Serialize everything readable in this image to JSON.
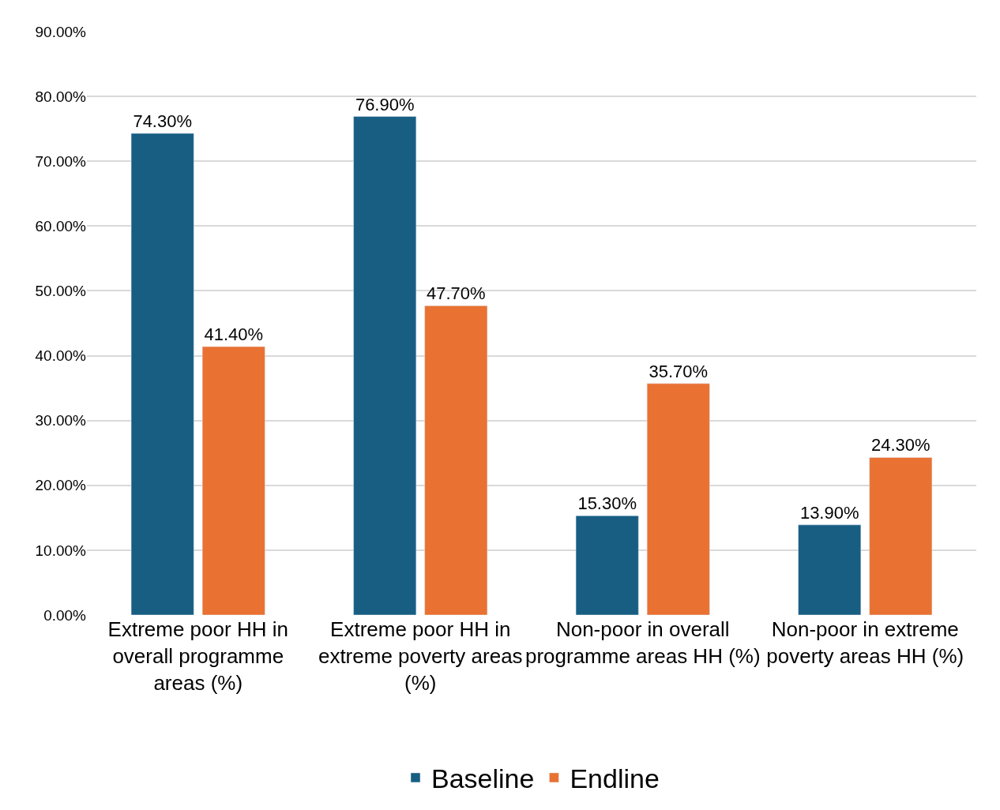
{
  "chart_data": {
    "type": "bar",
    "categories": [
      "Extreme poor HH in overall programme areas (%)",
      "Extreme poor HH in extreme poverty areas (%)",
      "Non-poor in overall programme areas HH (%)",
      "Non-poor in extreme poverty areas HH (%)"
    ],
    "series": [
      {
        "name": "Baseline",
        "color": "#175e82",
        "values": [
          74.3,
          76.9,
          15.3,
          13.9
        ],
        "value_labels": [
          "74.30%",
          "76.90%",
          "15.30%",
          "13.90%"
        ]
      },
      {
        "name": "Endline",
        "color": "#e97132",
        "values": [
          41.4,
          47.7,
          35.7,
          24.3
        ],
        "value_labels": [
          "41.40%",
          "47.70%",
          "35.70%",
          "24.30%"
        ]
      }
    ],
    "ylim": [
      0,
      90
    ],
    "yticks": [
      {
        "value": 0,
        "label": "0.00%"
      },
      {
        "value": 10,
        "label": "10.00%"
      },
      {
        "value": 20,
        "label": "20.00%"
      },
      {
        "value": 30,
        "label": "30.00%"
      },
      {
        "value": 40,
        "label": "40.00%"
      },
      {
        "value": 50,
        "label": "50.00%"
      },
      {
        "value": 60,
        "label": "60.00%"
      },
      {
        "value": 70,
        "label": "70.00%"
      },
      {
        "value": 80,
        "label": "80.00%"
      },
      {
        "value": 90,
        "label": "90.00%"
      }
    ],
    "grid": "y",
    "legend": "bottom"
  }
}
